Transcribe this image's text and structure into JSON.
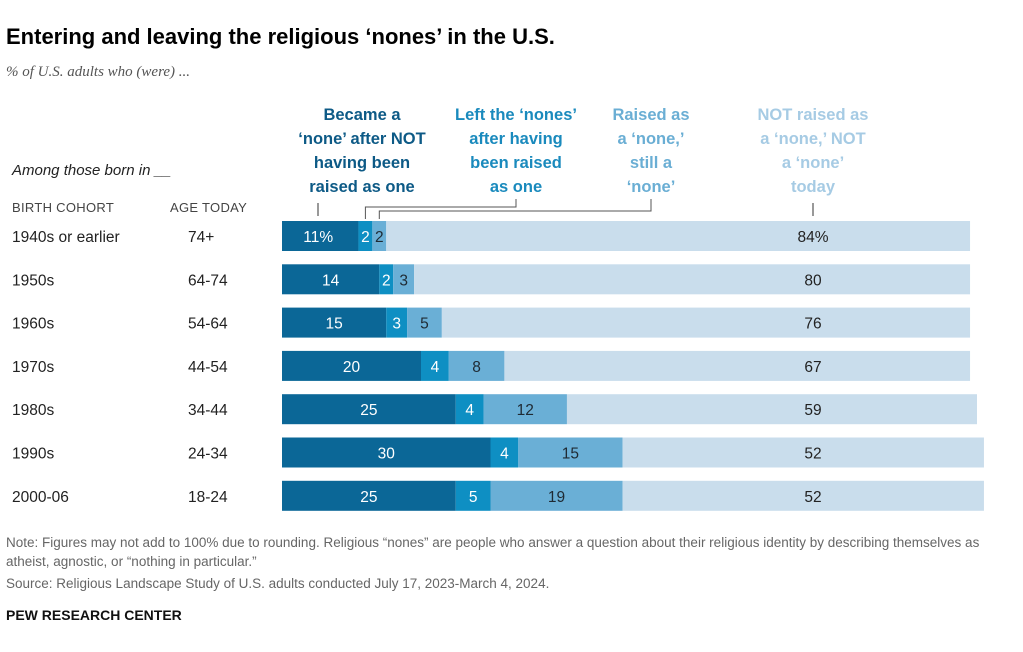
{
  "title": "Entering and leaving the religious ‘nones’ in the U.S.",
  "subtitle": "% of U.S. adults who (were) ...",
  "among_label": "Among those born in __",
  "column_headers": {
    "cohort": "BIRTH COHORT",
    "age": "AGE TODAY"
  },
  "note": "Note: Figures may not add to 100% due to rounding. Religious “nones” are people who answer a question about their religious identity by describing themselves as atheist, agnostic, or “nothing in particular.”",
  "source": "Source: Religious Landscape Study of U.S. adults conducted July 17, 2023-March 4, 2024.",
  "brand": "PEW RESEARCH CENTER",
  "chart_data": {
    "type": "bar",
    "orientation": "horizontal",
    "stacked": true,
    "categories": [
      "1940s or earlier",
      "1950s",
      "1960s",
      "1970s",
      "1980s",
      "1990s",
      "2000-06"
    ],
    "ages": [
      "74+",
      "64-74",
      "54-64",
      "44-54",
      "34-44",
      "24-34",
      "18-24"
    ],
    "xlim": [
      0,
      101
    ],
    "series": [
      {
        "name": "Became a ‘none’ after NOT having been raised as one",
        "legend_lines": [
          "Became a",
          "‘none’ after NOT",
          "having been",
          "raised as one"
        ],
        "color": "#0b6797",
        "label_color": "#0d5a86",
        "text_color": "#ffffff",
        "values": [
          11,
          14,
          15,
          20,
          25,
          30,
          25
        ]
      },
      {
        "name": "Left the ‘nones’ after having been raised as one",
        "legend_lines": [
          "Left the ‘nones’",
          "after having",
          "been raised",
          "as one"
        ],
        "color": "#0e8fc3",
        "label_color": "#1a8abd",
        "text_color": "#ffffff",
        "values": [
          2,
          2,
          3,
          4,
          4,
          4,
          5
        ]
      },
      {
        "name": "Raised as a ‘none,’ still a ‘none’",
        "legend_lines": [
          "Raised as",
          "a ‘none,’",
          "still a",
          "‘none’"
        ],
        "color": "#6aafd6",
        "label_color": "#6aaed4",
        "text_color": "#1f2a33",
        "values": [
          2,
          3,
          5,
          8,
          12,
          15,
          19
        ]
      },
      {
        "name": "NOT raised as a ‘none,’ NOT a ‘none’ today",
        "legend_lines": [
          "NOT raised as",
          "a ‘none,’ NOT",
          "a ‘none’",
          "today"
        ],
        "color": "#c9ddec",
        "label_color": "#a6cbe4",
        "text_color": "#222222",
        "values": [
          84,
          80,
          76,
          67,
          59,
          52,
          52
        ]
      }
    ],
    "first_row_percent_suffix": true
  }
}
